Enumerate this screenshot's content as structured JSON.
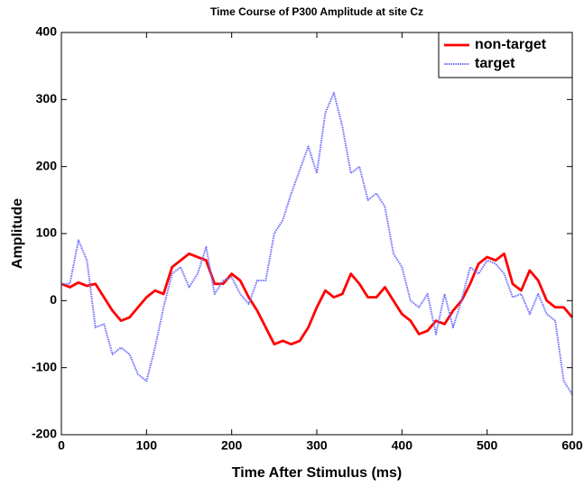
{
  "chart_data": {
    "type": "line",
    "title": "Time Course of P300 Amplitude at site Cz",
    "xlabel": "Time After Stimulus (ms)",
    "ylabel": "Amplitude",
    "x": [
      0,
      10,
      20,
      30,
      40,
      50,
      60,
      70,
      80,
      90,
      100,
      110,
      120,
      130,
      140,
      150,
      160,
      170,
      180,
      190,
      200,
      210,
      220,
      230,
      240,
      250,
      260,
      270,
      280,
      290,
      300,
      310,
      320,
      330,
      340,
      350,
      360,
      370,
      380,
      390,
      400,
      410,
      420,
      430,
      440,
      450,
      460,
      470,
      480,
      490,
      500,
      510,
      520,
      530,
      540,
      550,
      560,
      570,
      580,
      590,
      600
    ],
    "series": [
      {
        "name": "non-target",
        "color": "#ff0000",
        "style": "solid",
        "values": [
          25,
          20,
          27,
          22,
          25,
          5,
          -15,
          -30,
          -25,
          -10,
          5,
          15,
          10,
          50,
          60,
          70,
          65,
          60,
          25,
          25,
          40,
          30,
          5,
          -15,
          -40,
          -65,
          -60,
          -65,
          -60,
          -40,
          -10,
          15,
          5,
          10,
          40,
          25,
          5,
          5,
          20,
          0,
          -20,
          -30,
          -50,
          -45,
          -30,
          -35,
          -15,
          0,
          25,
          55,
          65,
          60,
          70,
          25,
          15,
          45,
          30,
          0,
          -10,
          -10,
          -25
        ]
      },
      {
        "name": "target",
        "color": "#6f6fff",
        "style": "dotted",
        "values": [
          25,
          25,
          90,
          60,
          -40,
          -35,
          -80,
          -70,
          -80,
          -110,
          -120,
          -70,
          -10,
          40,
          50,
          20,
          40,
          80,
          10,
          30,
          35,
          10,
          -5,
          30,
          30,
          100,
          120,
          160,
          195,
          230,
          190,
          280,
          310,
          260,
          190,
          200,
          150,
          160,
          140,
          70,
          50,
          0,
          -10,
          10,
          -50,
          10,
          -40,
          0,
          50,
          40,
          60,
          55,
          40,
          5,
          10,
          -20,
          10,
          -20,
          -30,
          -120,
          -140
        ]
      }
    ],
    "xlim": [
      0,
      600
    ],
    "xticks": [
      0,
      100,
      200,
      300,
      400,
      500,
      600
    ],
    "ylim": [
      -200,
      400
    ],
    "yticks": [
      -200,
      -100,
      0,
      100,
      200,
      300,
      400
    ],
    "legend": "upper right"
  }
}
